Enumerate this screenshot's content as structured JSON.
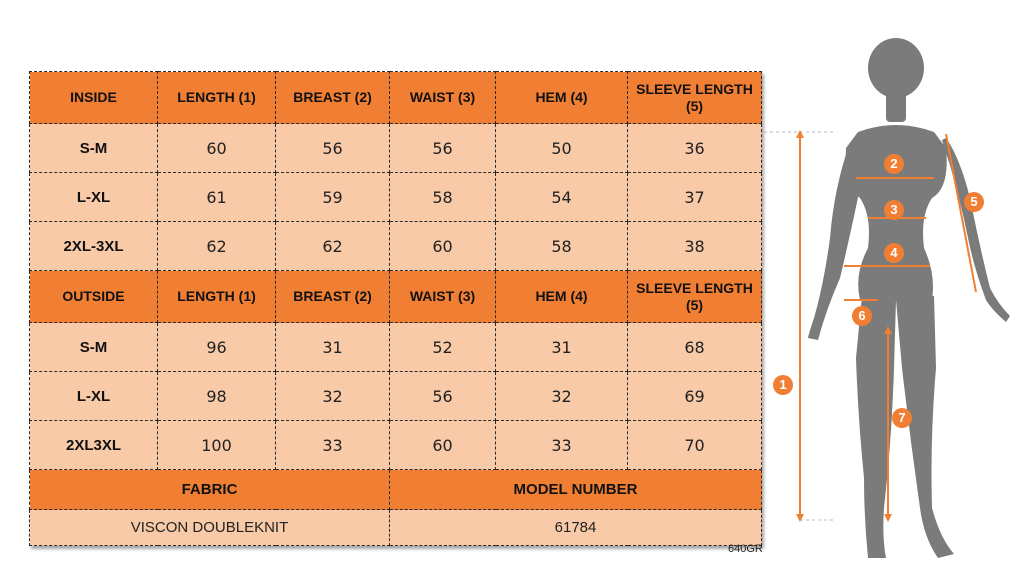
{
  "inside": {
    "headers": [
      "INSIDE",
      "LENGTH (1)",
      "BREAST (2)",
      "WAIST (3)",
      "HEM (4)",
      "SLEEVE LENGTH (5)"
    ],
    "rows": [
      {
        "size": "S-M",
        "values": [
          "60",
          "56",
          "56",
          "50",
          "36"
        ]
      },
      {
        "size": "L-XL",
        "values": [
          "61",
          "59",
          "58",
          "54",
          "37"
        ]
      },
      {
        "size": "2XL-3XL",
        "values": [
          "62",
          "62",
          "60",
          "58",
          "38"
        ]
      }
    ]
  },
  "outside": {
    "headers": [
      "OUTSIDE",
      "LENGTH (1)",
      "BREAST (2)",
      "WAIST (3)",
      "HEM (4)",
      "SLEEVE LENGTH (5)"
    ],
    "rows": [
      {
        "size": "S-M",
        "values": [
          "96",
          "31",
          "52",
          "31",
          "68"
        ]
      },
      {
        "size": "L-XL",
        "values": [
          "98",
          "32",
          "56",
          "32",
          "69"
        ]
      },
      {
        "size": "2XL3XL",
        "values": [
          "100",
          "33",
          "60",
          "33",
          "70"
        ]
      }
    ]
  },
  "footer": {
    "fabric_label": "FABRIC",
    "model_label": "MODEL NUMBER",
    "fabric_value": "VISCON DOUBLEKNIT",
    "model_value": "61784"
  },
  "model_code": "640GR",
  "figure": {
    "markers": [
      "1",
      "2",
      "3",
      "4",
      "5",
      "6",
      "7"
    ],
    "colors": {
      "silhouette": "#7a7a7a",
      "accent": "#f07f34",
      "marker_text": "#ffffff"
    }
  }
}
